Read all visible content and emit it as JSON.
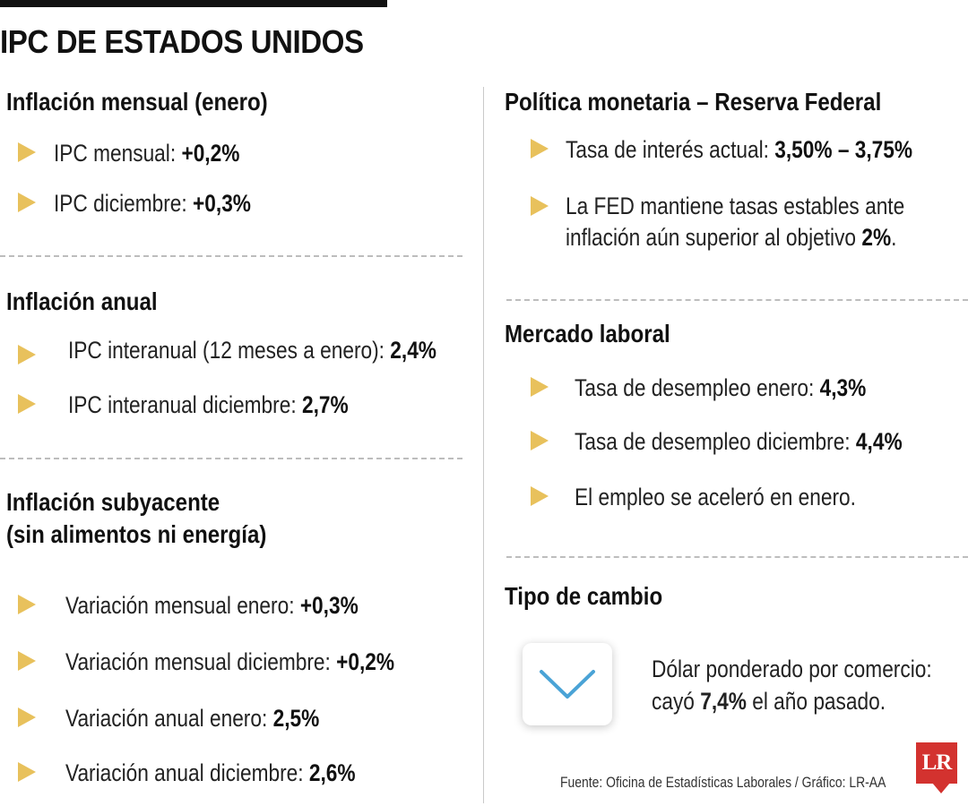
{
  "title": "IPC DE ESTADOS UNIDOS",
  "accent_color": "#e8c15c",
  "left": {
    "monthly": {
      "heading": "Inflación mensual (enero)",
      "items": [
        {
          "label": "IPC mensual: ",
          "value": "+0,2%"
        },
        {
          "label": "IPC diciembre: ",
          "value": "+0,3%"
        }
      ]
    },
    "annual": {
      "heading": "Inflación anual",
      "items": [
        {
          "label": "IPC interanual (12 meses a enero): ",
          "value": "2,4%"
        },
        {
          "label": "IPC interanual diciembre: ",
          "value": "2,7%"
        }
      ]
    },
    "core": {
      "heading_line1": "Inflación subyacente",
      "heading_line2": "(sin alimentos ni energía)",
      "items": [
        {
          "label": "Variación mensual enero: ",
          "value": "+0,3%"
        },
        {
          "label": "Variación mensual diciembre: ",
          "value": "+0,2%"
        },
        {
          "label": "Variación anual enero: ",
          "value": "2,5%"
        },
        {
          "label": "Variación anual diciembre: ",
          "value": "2,6%"
        }
      ]
    }
  },
  "right": {
    "monetary": {
      "heading": "Política monetaria – Reserva Federal",
      "rate_label": "Tasa de interés actual: ",
      "rate_value": "3,50% – 3,75%",
      "note_line1": "La FED mantiene tasas estables ante",
      "note_line2_text": "inflación aún superior al objetivo ",
      "note_line2_value": "2%",
      "note_line2_end": "."
    },
    "labor": {
      "heading": "Mercado laboral",
      "items": [
        {
          "label": "Tasa de desempleo enero: ",
          "value": "4,3%"
        },
        {
          "label": "Tasa de desempleo diciembre: ",
          "value": "4,4%"
        }
      ],
      "note": "El empleo se aceleró en enero."
    },
    "fx": {
      "heading": "Tipo de cambio",
      "icon": "chevron-down-icon",
      "line1": "Dólar ponderado por comercio:",
      "line2_text": "cayó ",
      "line2_value": "7,4%",
      "line2_end": " el año pasado."
    }
  },
  "source": "Fuente: Oficina de Estadísticas Laborales / Gráfico: LR-AA",
  "logo_text": "LR"
}
